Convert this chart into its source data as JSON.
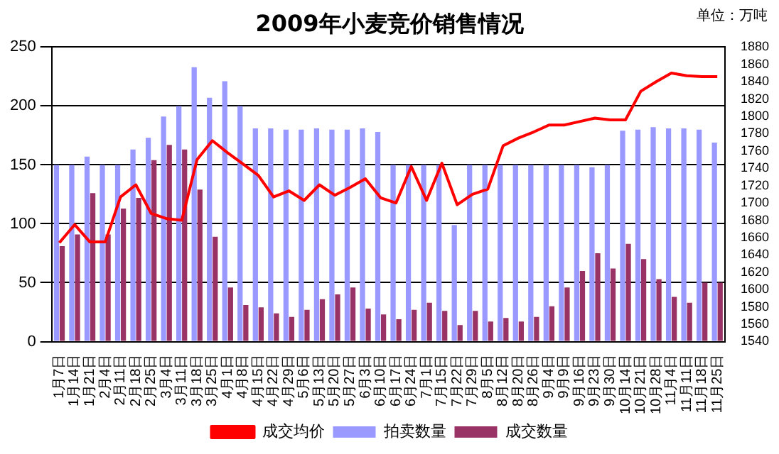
{
  "chart_data": {
    "type": "bar",
    "title": "2009年小麦竞价销售情况",
    "annotations": [
      "单位：万吨"
    ],
    "categories": [
      "1月7日",
      "1月14日",
      "1月21日",
      "2月4日",
      "2月11日",
      "2月18日",
      "2月25日",
      "3月4日",
      "3月11日",
      "3月18日",
      "3月25日",
      "4月1日",
      "4月8日",
      "4月15日",
      "4月22日",
      "4月29日",
      "5月6日",
      "5月13日",
      "5月20日",
      "5月27日",
      "6月3日",
      "6月10日",
      "6月17日",
      "6月24日",
      "7月1日",
      "7月15日",
      "7月22日",
      "7月29日",
      "8月5日",
      "8月12日",
      "8月20日",
      "8月26日",
      "9月4日",
      "9月9日",
      "9月16日",
      "9月23日",
      "9月30日",
      "10月14日",
      "10月21日",
      "10月28日",
      "11月4日",
      "11月11日",
      "11月18日",
      "11月25日"
    ],
    "series": [
      {
        "name": "拍卖数量",
        "color": "#9999ff",
        "values": [
          150,
          150,
          157,
          150,
          150,
          163,
          173,
          191,
          200,
          233,
          207,
          221,
          200,
          181,
          181,
          180,
          180,
          181,
          180,
          180,
          181,
          178,
          150,
          150,
          150,
          150,
          99,
          150,
          150,
          150,
          150,
          150,
          150,
          150,
          150,
          148,
          150,
          179,
          180,
          182,
          181,
          181,
          180,
          169
        ]
      },
      {
        "name": "成交数量",
        "color": "#993366",
        "values": [
          81,
          91,
          126,
          91,
          113,
          122,
          154,
          167,
          163,
          129,
          89,
          46,
          31,
          29,
          24,
          21,
          27,
          36,
          40,
          46,
          28,
          23,
          19,
          27,
          33,
          26,
          14,
          26,
          17,
          20,
          17,
          21,
          30,
          46,
          60,
          75,
          62,
          83,
          70,
          53,
          38,
          33,
          50,
          50
        ]
      },
      {
        "name": "成交均价",
        "type": "line",
        "axis": "y2",
        "color": "#ff0000",
        "values": [
          1654,
          1675,
          1655,
          1655,
          1707,
          1721,
          1688,
          1682,
          1680,
          1750,
          1772,
          1758,
          1745,
          1732,
          1707,
          1714,
          1703,
          1721,
          1709,
          1718,
          1728,
          1706,
          1700,
          1742,
          1703,
          1746,
          1698,
          1710,
          1716,
          1766,
          1775,
          1782,
          1790,
          1790,
          1794,
          1798,
          1796,
          1796,
          1829,
          1840,
          1850,
          1847,
          1846,
          1846
        ]
      }
    ],
    "ylim": [
      0,
      250
    ],
    "yticks": [
      0,
      50,
      100,
      150,
      200,
      250
    ],
    "y2lim": [
      1540,
      1880
    ],
    "y2ticks": [
      1540,
      1560,
      1580,
      1600,
      1620,
      1640,
      1660,
      1680,
      1700,
      1720,
      1740,
      1760,
      1780,
      1800,
      1820,
      1840,
      1860,
      1880
    ],
    "grid": "y",
    "legend": "bottom",
    "marker": "none",
    "line_style": "solid"
  }
}
